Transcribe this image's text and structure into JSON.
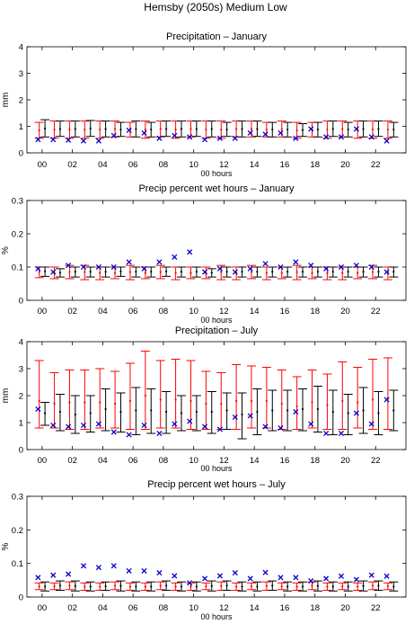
{
  "figure_title": "Hemsby (2050s) Medium Low",
  "colors": {
    "model_bar": "#ff0000",
    "obs_bar": "#000000",
    "marker": "#0000cc",
    "axes": "#000000"
  },
  "chart_data": [
    {
      "type": "errorbar",
      "title": "Precipitation – January",
      "xlabel": "00 hours",
      "ylabel": "mm",
      "ylim": [
        0,
        4
      ],
      "yticks": [
        "0",
        "1",
        "2",
        "3",
        "4"
      ],
      "xtick_labels": [
        "00",
        "02",
        "04",
        "06",
        "08",
        "10",
        "12",
        "14",
        "16",
        "18",
        "20",
        "22"
      ],
      "hours": [
        0,
        1,
        2,
        3,
        4,
        5,
        6,
        7,
        8,
        9,
        10,
        11,
        12,
        13,
        14,
        15,
        16,
        17,
        18,
        19,
        20,
        21,
        22,
        23
      ],
      "red_low": [
        0.55,
        0.55,
        0.55,
        0.55,
        0.55,
        0.6,
        0.6,
        0.55,
        0.6,
        0.55,
        0.6,
        0.55,
        0.55,
        0.6,
        0.6,
        0.6,
        0.6,
        0.55,
        0.6,
        0.55,
        0.6,
        0.55,
        0.55,
        0.55
      ],
      "red_high": [
        1.15,
        1.2,
        1.2,
        1.2,
        1.2,
        1.2,
        1.15,
        1.2,
        1.2,
        1.2,
        1.2,
        1.2,
        1.2,
        1.2,
        1.2,
        1.15,
        1.2,
        1.15,
        1.15,
        1.2,
        1.2,
        1.2,
        1.2,
        1.2
      ],
      "black_low": [
        0.6,
        0.62,
        0.6,
        0.62,
        0.6,
        0.62,
        0.6,
        0.6,
        0.62,
        0.6,
        0.62,
        0.6,
        0.62,
        0.6,
        0.62,
        0.6,
        0.6,
        0.62,
        0.6,
        0.62,
        0.6,
        0.6,
        0.62,
        0.6
      ],
      "black_high": [
        1.25,
        1.2,
        1.2,
        1.22,
        1.2,
        1.15,
        1.2,
        1.15,
        1.2,
        1.2,
        1.2,
        1.2,
        1.15,
        1.2,
        1.2,
        1.15,
        1.15,
        1.1,
        1.15,
        1.2,
        1.15,
        1.2,
        1.2,
        1.15
      ],
      "red_mid": [
        0.85,
        0.88,
        0.88,
        0.88,
        0.88,
        0.9,
        0.88,
        0.88,
        0.9,
        0.88,
        0.9,
        0.88,
        0.88,
        0.9,
        0.9,
        0.88,
        0.9,
        0.85,
        0.88,
        0.88,
        0.9,
        0.88,
        0.88,
        0.88
      ],
      "black_mid": [
        0.92,
        0.9,
        0.9,
        0.92,
        0.9,
        0.88,
        0.9,
        0.88,
        0.9,
        0.9,
        0.9,
        0.9,
        0.88,
        0.9,
        0.9,
        0.88,
        0.88,
        0.86,
        0.88,
        0.9,
        0.88,
        0.9,
        0.9,
        0.88
      ],
      "observed": [
        0.5,
        0.5,
        0.48,
        0.45,
        0.45,
        0.65,
        0.85,
        0.75,
        0.55,
        0.65,
        0.6,
        0.5,
        0.55,
        0.55,
        0.75,
        0.7,
        0.75,
        0.55,
        0.9,
        0.6,
        0.6,
        0.9,
        0.6,
        0.45
      ]
    },
    {
      "type": "errorbar",
      "title": "Precip percent wet hours – January",
      "xlabel": "00 hours",
      "ylabel": "%",
      "ylim": [
        0,
        0.3
      ],
      "yticks": [
        "0",
        "0.1",
        "0.2",
        "0.3"
      ],
      "xtick_labels": [
        "00",
        "02",
        "04",
        "06",
        "08",
        "10",
        "12",
        "14",
        "16",
        "18",
        "20",
        "22"
      ],
      "hours": [
        0,
        1,
        2,
        3,
        4,
        5,
        6,
        7,
        8,
        9,
        10,
        11,
        12,
        13,
        14,
        15,
        16,
        17,
        18,
        19,
        20,
        21,
        22,
        23
      ],
      "red_low": [
        0.068,
        0.065,
        0.065,
        0.062,
        0.062,
        0.065,
        0.062,
        0.065,
        0.065,
        0.062,
        0.065,
        0.065,
        0.062,
        0.062,
        0.065,
        0.062,
        0.065,
        0.062,
        0.065,
        0.062,
        0.062,
        0.065,
        0.065,
        0.062
      ],
      "red_high": [
        0.1,
        0.1,
        0.105,
        0.105,
        0.1,
        0.1,
        0.105,
        0.1,
        0.105,
        0.1,
        0.1,
        0.1,
        0.105,
        0.1,
        0.105,
        0.1,
        0.1,
        0.105,
        0.1,
        0.1,
        0.1,
        0.1,
        0.105,
        0.1
      ],
      "black_low": [
        0.072,
        0.07,
        0.07,
        0.07,
        0.07,
        0.072,
        0.07,
        0.07,
        0.072,
        0.07,
        0.07,
        0.07,
        0.07,
        0.07,
        0.07,
        0.07,
        0.07,
        0.07,
        0.07,
        0.07,
        0.07,
        0.07,
        0.07,
        0.07
      ],
      "black_high": [
        0.1,
        0.095,
        0.1,
        0.1,
        0.1,
        0.1,
        0.1,
        0.1,
        0.1,
        0.1,
        0.1,
        0.095,
        0.1,
        0.1,
        0.1,
        0.1,
        0.1,
        0.1,
        0.1,
        0.1,
        0.1,
        0.1,
        0.1,
        0.1
      ],
      "red_mid": [
        0.085,
        0.082,
        0.085,
        0.085,
        0.082,
        0.082,
        0.085,
        0.082,
        0.085,
        0.082,
        0.082,
        0.082,
        0.085,
        0.082,
        0.085,
        0.082,
        0.082,
        0.085,
        0.082,
        0.082,
        0.082,
        0.082,
        0.085,
        0.082
      ],
      "black_mid": [
        0.087,
        0.083,
        0.086,
        0.086,
        0.086,
        0.087,
        0.086,
        0.086,
        0.087,
        0.086,
        0.086,
        0.083,
        0.086,
        0.086,
        0.086,
        0.086,
        0.086,
        0.086,
        0.086,
        0.086,
        0.086,
        0.086,
        0.086,
        0.086
      ],
      "observed": [
        0.095,
        0.085,
        0.105,
        0.1,
        0.1,
        0.1,
        0.115,
        0.095,
        0.115,
        0.13,
        0.145,
        0.085,
        0.095,
        0.085,
        0.095,
        0.11,
        0.1,
        0.115,
        0.105,
        0.095,
        0.1,
        0.105,
        0.1,
        0.085
      ]
    },
    {
      "type": "errorbar",
      "title": "Precipitation – July",
      "xlabel": "00 hours",
      "ylabel": "mm",
      "ylim": [
        0,
        4
      ],
      "yticks": [
        "0",
        "1",
        "2",
        "3",
        "4"
      ],
      "xtick_labels": [
        "00",
        "02",
        "04",
        "06",
        "08",
        "10",
        "12",
        "14",
        "16",
        "18",
        "20",
        "22"
      ],
      "hours": [
        0,
        1,
        2,
        3,
        4,
        5,
        6,
        7,
        8,
        9,
        10,
        11,
        12,
        13,
        14,
        15,
        16,
        17,
        18,
        19,
        20,
        21,
        22,
        23
      ],
      "red_low": [
        0.8,
        0.8,
        0.75,
        0.75,
        0.8,
        0.8,
        0.75,
        0.75,
        0.8,
        0.8,
        0.75,
        0.75,
        0.75,
        0.75,
        0.8,
        0.8,
        0.75,
        0.75,
        0.8,
        0.75,
        0.75,
        0.8,
        0.75,
        0.75
      ],
      "red_high": [
        3.3,
        2.85,
        2.95,
        2.95,
        3.0,
        2.9,
        3.2,
        3.65,
        3.3,
        3.35,
        3.3,
        2.9,
        2.85,
        3.15,
        3.1,
        3.05,
        2.95,
        2.7,
        2.95,
        2.8,
        3.25,
        3.05,
        3.35,
        3.4
      ],
      "black_low": [
        0.9,
        0.7,
        0.6,
        0.65,
        0.7,
        0.65,
        0.55,
        0.6,
        0.6,
        0.7,
        0.7,
        0.6,
        0.75,
        0.4,
        0.55,
        0.7,
        0.7,
        0.7,
        0.65,
        0.55,
        0.55,
        0.6,
        0.55,
        0.7
      ],
      "black_high": [
        1.75,
        2.05,
        2.0,
        2.0,
        2.25,
        2.1,
        2.3,
        2.25,
        2.15,
        2.0,
        2.0,
        2.15,
        2.1,
        2.1,
        2.25,
        2.2,
        2.2,
        2.25,
        2.35,
        2.2,
        2.05,
        2.3,
        2.15,
        2.2
      ],
      "red_mid": [
        1.8,
        1.7,
        1.75,
        1.75,
        1.75,
        1.7,
        1.8,
        2.0,
        1.85,
        1.85,
        1.8,
        1.7,
        1.7,
        1.8,
        1.8,
        1.8,
        1.7,
        1.6,
        1.75,
        1.65,
        1.8,
        1.75,
        1.85,
        1.9
      ],
      "black_mid": [
        1.35,
        1.4,
        1.3,
        1.35,
        1.5,
        1.4,
        1.45,
        1.45,
        1.4,
        1.35,
        1.4,
        1.4,
        1.45,
        1.3,
        1.4,
        1.45,
        1.45,
        1.5,
        1.5,
        1.4,
        1.35,
        1.45,
        1.35,
        1.45
      ],
      "observed": [
        1.5,
        0.9,
        0.85,
        0.9,
        0.95,
        0.65,
        0.55,
        0.9,
        0.6,
        0.95,
        1.05,
        0.85,
        0.75,
        1.2,
        1.25,
        0.85,
        0.8,
        1.4,
        0.95,
        0.6,
        0.6,
        1.35,
        0.95,
        1.85
      ]
    },
    {
      "type": "errorbar",
      "title": "Precip percent wet hours – July",
      "xlabel": "00 hours",
      "ylabel": "%",
      "ylim": [
        0,
        0.3
      ],
      "yticks": [
        "0",
        "0.1",
        "0.2",
        "0.3"
      ],
      "xtick_labels": [
        "00",
        "02",
        "04",
        "06",
        "08",
        "10",
        "12",
        "14",
        "16",
        "18",
        "20",
        "22"
      ],
      "hours": [
        0,
        1,
        2,
        3,
        4,
        5,
        6,
        7,
        8,
        9,
        10,
        11,
        12,
        13,
        14,
        15,
        16,
        17,
        18,
        19,
        20,
        21,
        22,
        23
      ],
      "red_low": [
        0.022,
        0.022,
        0.022,
        0.02,
        0.02,
        0.022,
        0.02,
        0.02,
        0.022,
        0.02,
        0.02,
        0.022,
        0.02,
        0.02,
        0.022,
        0.02,
        0.022,
        0.02,
        0.022,
        0.02,
        0.022,
        0.02,
        0.022,
        0.022
      ],
      "red_high": [
        0.042,
        0.042,
        0.045,
        0.042,
        0.042,
        0.045,
        0.042,
        0.042,
        0.045,
        0.042,
        0.042,
        0.042,
        0.045,
        0.042,
        0.042,
        0.045,
        0.042,
        0.042,
        0.045,
        0.042,
        0.042,
        0.042,
        0.045,
        0.042
      ],
      "black_low": [
        0.018,
        0.02,
        0.018,
        0.018,
        0.02,
        0.018,
        0.018,
        0.018,
        0.02,
        0.018,
        0.018,
        0.018,
        0.02,
        0.018,
        0.018,
        0.02,
        0.018,
        0.018,
        0.018,
        0.018,
        0.018,
        0.018,
        0.02,
        0.018
      ],
      "black_high": [
        0.045,
        0.048,
        0.048,
        0.045,
        0.045,
        0.048,
        0.045,
        0.045,
        0.048,
        0.045,
        0.045,
        0.048,
        0.048,
        0.045,
        0.045,
        0.048,
        0.045,
        0.045,
        0.048,
        0.045,
        0.045,
        0.048,
        0.048,
        0.045
      ],
      "red_mid": [
        0.032,
        0.032,
        0.034,
        0.031,
        0.031,
        0.034,
        0.031,
        0.031,
        0.034,
        0.031,
        0.031,
        0.032,
        0.033,
        0.031,
        0.032,
        0.033,
        0.032,
        0.031,
        0.034,
        0.031,
        0.032,
        0.031,
        0.034,
        0.032
      ],
      "black_mid": [
        0.031,
        0.034,
        0.033,
        0.031,
        0.032,
        0.033,
        0.031,
        0.031,
        0.034,
        0.031,
        0.031,
        0.033,
        0.034,
        0.031,
        0.031,
        0.034,
        0.031,
        0.031,
        0.033,
        0.031,
        0.031,
        0.033,
        0.034,
        0.031
      ],
      "observed": [
        0.058,
        0.065,
        0.068,
        0.093,
        0.088,
        0.093,
        0.078,
        0.078,
        0.072,
        0.063,
        0.042,
        0.055,
        0.063,
        0.072,
        0.055,
        0.073,
        0.058,
        0.058,
        0.048,
        0.055,
        0.062,
        0.052,
        0.065,
        0.062
      ]
    }
  ]
}
